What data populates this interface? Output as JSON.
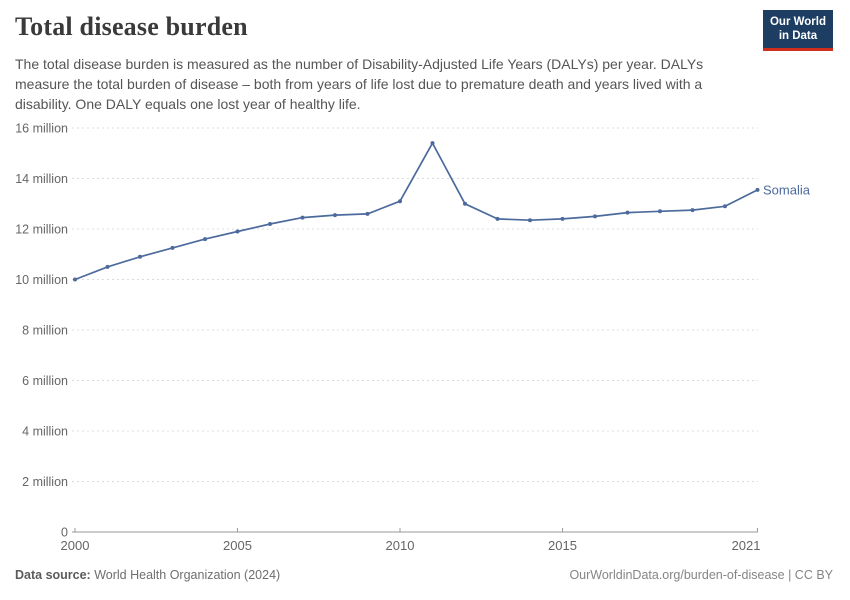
{
  "header": {
    "title": "Total disease burden",
    "subtitle": "The total disease burden is measured as the number of Disability-Adjusted Life Years (DALYs) per year. DALYs measure the total burden of disease – both from years of life lost due to premature death and years lived with a disability. One DALY equals one lost year of healthy life.",
    "logo": {
      "line1": "Our World",
      "line2": "in Data",
      "bg_color": "#1d3d63",
      "accent_color": "#cf2e1f"
    }
  },
  "footer": {
    "source_label": "Data source:",
    "source_value": " World Health Organization (2024)",
    "site_link": "OurWorldinData.org/burden-of-disease",
    "license": " | CC BY"
  },
  "colors": {
    "series_blue": "#4C6A9C",
    "grid": "#dcdcdc",
    "axis": "#999999",
    "tick_text": "#666666"
  },
  "chart_data": {
    "type": "line",
    "title": "Total disease burden",
    "xlabel": "",
    "ylabel": "",
    "value_scale": "millions of DALYs per year",
    "x": [
      2000,
      2001,
      2002,
      2003,
      2004,
      2005,
      2006,
      2007,
      2008,
      2009,
      2010,
      2011,
      2012,
      2013,
      2014,
      2015,
      2016,
      2017,
      2018,
      2019,
      2020,
      2021
    ],
    "series": [
      {
        "name": "Somalia",
        "color": "#4C6A9C",
        "values": [
          10.0,
          10.5,
          10.9,
          11.25,
          11.6,
          11.9,
          12.2,
          12.45,
          12.55,
          12.6,
          13.1,
          15.4,
          13.0,
          12.4,
          12.35,
          12.4,
          12.5,
          12.65,
          12.7,
          12.75,
          12.9,
          13.55
        ]
      }
    ],
    "ylim": [
      0,
      16
    ],
    "yticks": [
      0,
      2,
      4,
      6,
      8,
      10,
      12,
      14,
      16
    ],
    "ytick_labels": [
      "0",
      "2 million",
      "4 million",
      "6 million",
      "8 million",
      "10 million",
      "12 million",
      "14 million",
      "16 million"
    ],
    "xticks": [
      2000,
      2005,
      2010,
      2015,
      2021
    ],
    "xtick_labels": [
      "2000",
      "2005",
      "2010",
      "2015",
      "2021"
    ],
    "grid": "horizontal-dashed",
    "legend_position": "end-of-line-label",
    "markers": true
  }
}
